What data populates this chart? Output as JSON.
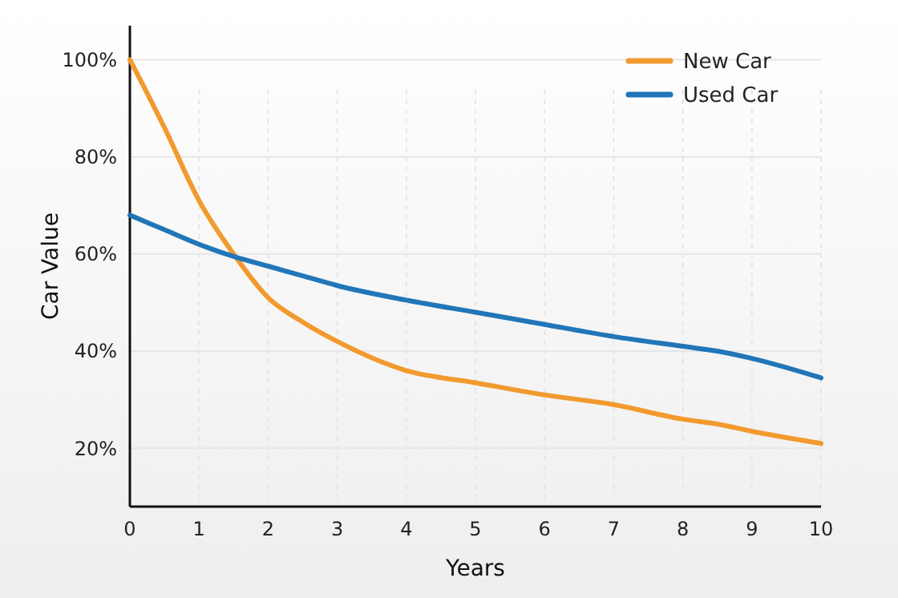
{
  "chart_data": {
    "type": "line",
    "xlabel": "Years",
    "ylabel": "Car Value",
    "x": [
      0,
      0.5,
      1,
      1.5,
      2,
      2.5,
      3,
      4,
      5,
      6,
      7,
      8,
      8.5,
      9,
      10
    ],
    "series": [
      {
        "name": "New Car",
        "color": "#f29a2e",
        "values": [
          100,
          86,
          71,
          60,
          51,
          46,
          42,
          36,
          33.5,
          31,
          29,
          26,
          25,
          23.5,
          21
        ]
      },
      {
        "name": "Used Car",
        "color": "#2176b8",
        "values": [
          68,
          65,
          62,
          59.5,
          57.5,
          55.5,
          53.5,
          50.5,
          48,
          45.5,
          43,
          41,
          40,
          38.5,
          34.5
        ]
      }
    ],
    "xlim": [
      0,
      10
    ],
    "xticks": [
      0,
      1,
      2,
      3,
      4,
      5,
      6,
      7,
      8,
      9,
      10
    ],
    "ylim": [
      8,
      107
    ],
    "yticks": [
      {
        "value": 20,
        "label": "20%"
      },
      {
        "value": 40,
        "label": "40%"
      },
      {
        "value": 60,
        "label": "60%"
      },
      {
        "value": 80,
        "label": "80%"
      },
      {
        "value": 100,
        "label": "100%"
      }
    ],
    "grid": true,
    "legend": "top right",
    "line_style": "solid"
  }
}
